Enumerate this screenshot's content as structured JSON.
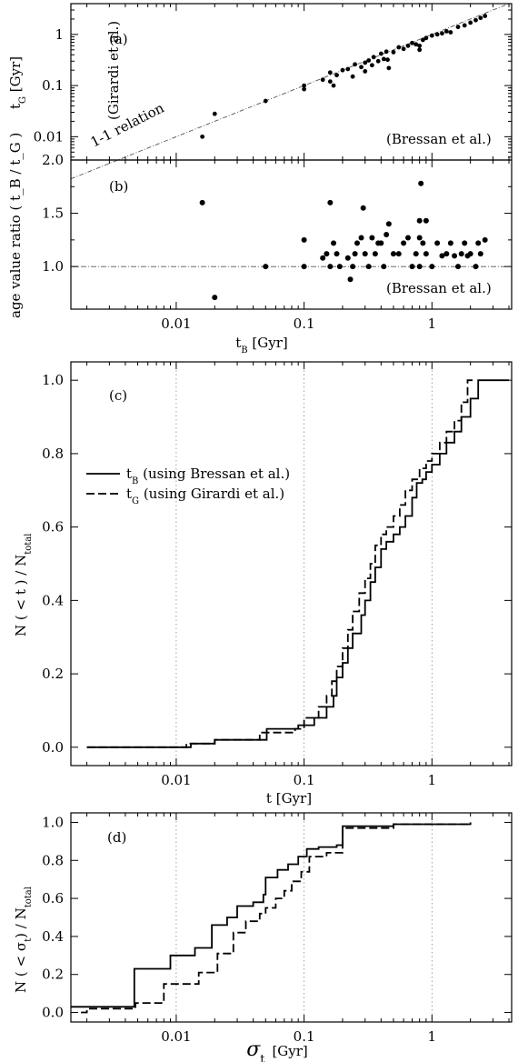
{
  "chart_data": [
    {
      "id": "a",
      "type": "scatter",
      "panel_label": "(a)",
      "xscale": "log",
      "yscale": "log",
      "xlim": [
        0.0015,
        4.2
      ],
      "ylim": [
        0.0035,
        4.0
      ],
      "ylabel": "t",
      "ylabel_sub": "G",
      "ylabel_unit": "[Gyr]",
      "yticks": [
        {
          "v": 0.01,
          "label": "0.01"
        },
        {
          "v": 0.1,
          "label": "0.1"
        },
        {
          "v": 1,
          "label": "1"
        }
      ],
      "annotations": {
        "reference_line": "1-1 relation",
        "model_y": "(Girardi et al.)",
        "model_x": "(Bressan et al.)"
      },
      "points": [
        [
          0.016,
          0.01
        ],
        [
          0.02,
          0.028
        ],
        [
          0.05,
          0.05
        ],
        [
          0.1,
          0.1
        ],
        [
          0.1,
          0.085
        ],
        [
          0.14,
          0.13
        ],
        [
          0.16,
          0.18
        ],
        [
          0.16,
          0.12
        ],
        [
          0.17,
          0.1
        ],
        [
          0.18,
          0.16
        ],
        [
          0.2,
          0.2
        ],
        [
          0.22,
          0.21
        ],
        [
          0.24,
          0.15
        ],
        [
          0.25,
          0.26
        ],
        [
          0.28,
          0.23
        ],
        [
          0.3,
          0.28
        ],
        [
          0.3,
          0.19
        ],
        [
          0.32,
          0.31
        ],
        [
          0.34,
          0.25
        ],
        [
          0.35,
          0.36
        ],
        [
          0.38,
          0.3
        ],
        [
          0.4,
          0.42
        ],
        [
          0.42,
          0.33
        ],
        [
          0.44,
          0.46
        ],
        [
          0.45,
          0.32
        ],
        [
          0.46,
          0.22
        ],
        [
          0.5,
          0.45
        ],
        [
          0.55,
          0.56
        ],
        [
          0.6,
          0.52
        ],
        [
          0.65,
          0.6
        ],
        [
          0.7,
          0.68
        ],
        [
          0.75,
          0.64
        ],
        [
          0.8,
          0.6
        ],
        [
          0.8,
          0.5
        ],
        [
          0.85,
          0.78
        ],
        [
          0.9,
          0.85
        ],
        [
          1.0,
          0.95
        ],
        [
          1.1,
          1.0
        ],
        [
          1.2,
          1.05
        ],
        [
          1.3,
          1.15
        ],
        [
          1.4,
          1.1
        ],
        [
          1.6,
          1.4
        ],
        [
          1.8,
          1.5
        ],
        [
          2.0,
          1.7
        ],
        [
          2.2,
          1.9
        ],
        [
          2.4,
          2.1
        ],
        [
          2.6,
          2.3
        ]
      ]
    },
    {
      "id": "b",
      "type": "scatter",
      "panel_label": "(b)",
      "xscale": "log",
      "xlim": [
        0.0015,
        4.2
      ],
      "ylim": [
        0.6,
        2.0
      ],
      "ylabel": "age value ratio ( t_B / t_G )",
      "xlabel": "t",
      "xlabel_sub": "B",
      "xlabel_unit": "[Gyr]",
      "xticks": [
        {
          "v": 0.01,
          "label": "0.01"
        },
        {
          "v": 0.1,
          "label": "0.1"
        },
        {
          "v": 1,
          "label": "1"
        }
      ],
      "yticks": [
        {
          "v": 1.0,
          "label": "1.0"
        },
        {
          "v": 1.5,
          "label": "1.5"
        },
        {
          "v": 2.0,
          "label": "2.0"
        }
      ],
      "reference_y": 1.0,
      "annotation": "(Bressan et al.)",
      "points": [
        [
          0.016,
          1.6
        ],
        [
          0.02,
          0.71
        ],
        [
          0.05,
          1.0
        ],
        [
          0.1,
          1.25
        ],
        [
          0.1,
          1.0
        ],
        [
          0.14,
          1.08
        ],
        [
          0.15,
          1.12
        ],
        [
          0.16,
          1.6
        ],
        [
          0.16,
          1.0
        ],
        [
          0.17,
          1.22
        ],
        [
          0.18,
          1.12
        ],
        [
          0.19,
          1.0
        ],
        [
          0.22,
          1.08
        ],
        [
          0.23,
          0.88
        ],
        [
          0.24,
          1.0
        ],
        [
          0.25,
          1.12
        ],
        [
          0.26,
          1.22
        ],
        [
          0.28,
          1.27
        ],
        [
          0.29,
          1.55
        ],
        [
          0.3,
          1.12
        ],
        [
          0.32,
          1.0
        ],
        [
          0.34,
          1.27
        ],
        [
          0.36,
          1.12
        ],
        [
          0.38,
          1.22
        ],
        [
          0.4,
          1.22
        ],
        [
          0.42,
          1.0
        ],
        [
          0.44,
          1.3
        ],
        [
          0.46,
          1.4
        ],
        [
          0.5,
          1.12
        ],
        [
          0.55,
          1.12
        ],
        [
          0.6,
          1.22
        ],
        [
          0.65,
          1.27
        ],
        [
          0.7,
          1.0
        ],
        [
          0.75,
          1.12
        ],
        [
          0.8,
          1.43
        ],
        [
          0.8,
          1.27
        ],
        [
          0.8,
          1.0
        ],
        [
          0.82,
          1.78
        ],
        [
          0.85,
          1.22
        ],
        [
          0.9,
          1.43
        ],
        [
          0.9,
          1.12
        ],
        [
          1.0,
          1.0
        ],
        [
          1.1,
          1.22
        ],
        [
          1.2,
          1.1
        ],
        [
          1.3,
          1.12
        ],
        [
          1.4,
          1.22
        ],
        [
          1.5,
          1.1
        ],
        [
          1.6,
          1.0
        ],
        [
          1.7,
          1.12
        ],
        [
          1.8,
          1.22
        ],
        [
          1.9,
          1.1
        ],
        [
          2.0,
          1.12
        ],
        [
          2.2,
          1.0
        ],
        [
          2.3,
          1.22
        ],
        [
          2.4,
          1.12
        ],
        [
          2.6,
          1.25
        ]
      ]
    },
    {
      "id": "c",
      "type": "line",
      "panel_label": "(c)",
      "xscale": "log",
      "xlim": [
        0.0015,
        4.2
      ],
      "ylim": [
        -0.05,
        1.05
      ],
      "ylabel": "N ( < t ) / N",
      "ylabel_sub": "total",
      "xlabel": "t [Gyr]",
      "xticks": [
        {
          "v": 0.01,
          "label": "0.01"
        },
        {
          "v": 0.1,
          "label": "0.1"
        },
        {
          "v": 1,
          "label": "1"
        }
      ],
      "yticks": [
        {
          "v": 0.0,
          "label": "0.0"
        },
        {
          "v": 0.2,
          "label": "0.2"
        },
        {
          "v": 0.4,
          "label": "0.4"
        },
        {
          "v": 0.6,
          "label": "0.6"
        },
        {
          "v": 0.8,
          "label": "0.8"
        },
        {
          "v": 1.0,
          "label": "1.0"
        }
      ],
      "legend": [
        {
          "sym": "t",
          "sub": "B",
          "text": "(using Bressan et al.)",
          "style": "solid"
        },
        {
          "sym": "t",
          "sub": "G",
          "text": "(using Girardi et al.)",
          "style": "dashed"
        }
      ],
      "series": [
        {
          "style": "solid",
          "points": [
            [
              0.002,
              0.0
            ],
            [
              0.012,
              0.0
            ],
            [
              0.013,
              0.01
            ],
            [
              0.02,
              0.02
            ],
            [
              0.05,
              0.02
            ],
            [
              0.051,
              0.05
            ],
            [
              0.09,
              0.06
            ],
            [
              0.12,
              0.08
            ],
            [
              0.15,
              0.11
            ],
            [
              0.17,
              0.14
            ],
            [
              0.18,
              0.19
            ],
            [
              0.2,
              0.23
            ],
            [
              0.22,
              0.27
            ],
            [
              0.24,
              0.31
            ],
            [
              0.28,
              0.36
            ],
            [
              0.3,
              0.4
            ],
            [
              0.33,
              0.45
            ],
            [
              0.36,
              0.49
            ],
            [
              0.4,
              0.54
            ],
            [
              0.44,
              0.56
            ],
            [
              0.5,
              0.58
            ],
            [
              0.56,
              0.6
            ],
            [
              0.62,
              0.63
            ],
            [
              0.7,
              0.68
            ],
            [
              0.76,
              0.72
            ],
            [
              0.84,
              0.73
            ],
            [
              0.9,
              0.75
            ],
            [
              1.0,
              0.77
            ],
            [
              1.15,
              0.8
            ],
            [
              1.3,
              0.83
            ],
            [
              1.5,
              0.86
            ],
            [
              1.7,
              0.9
            ],
            [
              2.0,
              0.95
            ],
            [
              2.3,
              1.0
            ],
            [
              4.0,
              1.0
            ]
          ]
        },
        {
          "style": "dashed",
          "points": [
            [
              0.002,
              0.0
            ],
            [
              0.011,
              0.0
            ],
            [
              0.012,
              0.01
            ],
            [
              0.02,
              0.02
            ],
            [
              0.04,
              0.02
            ],
            [
              0.045,
              0.04
            ],
            [
              0.085,
              0.05
            ],
            [
              0.1,
              0.08
            ],
            [
              0.13,
              0.11
            ],
            [
              0.15,
              0.14
            ],
            [
              0.165,
              0.18
            ],
            [
              0.18,
              0.22
            ],
            [
              0.2,
              0.27
            ],
            [
              0.22,
              0.32
            ],
            [
              0.24,
              0.37
            ],
            [
              0.27,
              0.42
            ],
            [
              0.3,
              0.46
            ],
            [
              0.33,
              0.5
            ],
            [
              0.36,
              0.55
            ],
            [
              0.4,
              0.58
            ],
            [
              0.44,
              0.6
            ],
            [
              0.5,
              0.63
            ],
            [
              0.56,
              0.66
            ],
            [
              0.62,
              0.7
            ],
            [
              0.7,
              0.73
            ],
            [
              0.8,
              0.76
            ],
            [
              0.9,
              0.78
            ],
            [
              1.0,
              0.8
            ],
            [
              1.15,
              0.83
            ],
            [
              1.3,
              0.86
            ],
            [
              1.5,
              0.89
            ],
            [
              1.7,
              0.94
            ],
            [
              1.9,
              1.0
            ],
            [
              2.1,
              1.0
            ]
          ]
        }
      ]
    },
    {
      "id": "d",
      "type": "line",
      "panel_label": "(d)",
      "xscale": "log",
      "xlim": [
        0.0015,
        4.2
      ],
      "ylim": [
        -0.05,
        1.05
      ],
      "ylabel": "N ( < σ",
      "ylabel_sub1": "t",
      "ylabel_mid": ") / N",
      "ylabel_sub2": "total",
      "xlabel": "σ",
      "xlabel_sub": "t",
      "xlabel_unit": "[Gyr]",
      "xticks": [
        {
          "v": 0.01,
          "label": "0.01"
        },
        {
          "v": 0.1,
          "label": "0.1"
        },
        {
          "v": 1,
          "label": "1"
        }
      ],
      "yticks": [
        {
          "v": 0.0,
          "label": "0.0"
        },
        {
          "v": 0.2,
          "label": "0.2"
        },
        {
          "v": 0.4,
          "label": "0.4"
        },
        {
          "v": 0.6,
          "label": "0.6"
        },
        {
          "v": 0.8,
          "label": "0.8"
        },
        {
          "v": 1.0,
          "label": "1.0"
        }
      ],
      "series": [
        {
          "style": "solid",
          "points": [
            [
              0.0015,
              0.03
            ],
            [
              0.0045,
              0.03
            ],
            [
              0.0047,
              0.23
            ],
            [
              0.0085,
              0.23
            ],
            [
              0.009,
              0.3
            ],
            [
              0.013,
              0.3
            ],
            [
              0.014,
              0.34
            ],
            [
              0.018,
              0.34
            ],
            [
              0.019,
              0.46
            ],
            [
              0.024,
              0.46
            ],
            [
              0.025,
              0.5
            ],
            [
              0.029,
              0.5
            ],
            [
              0.03,
              0.56
            ],
            [
              0.04,
              0.58
            ],
            [
              0.048,
              0.62
            ],
            [
              0.05,
              0.71
            ],
            [
              0.062,
              0.75
            ],
            [
              0.075,
              0.78
            ],
            [
              0.09,
              0.82
            ],
            [
              0.105,
              0.86
            ],
            [
              0.13,
              0.87
            ],
            [
              0.18,
              0.88
            ],
            [
              0.2,
              0.98
            ],
            [
              0.5,
              0.99
            ],
            [
              2.0,
              1.0
            ]
          ]
        },
        {
          "style": "dashed",
          "points": [
            [
              0.0018,
              0.0
            ],
            [
              0.002,
              0.02
            ],
            [
              0.0045,
              0.02
            ],
            [
              0.0048,
              0.05
            ],
            [
              0.0075,
              0.05
            ],
            [
              0.008,
              0.15
            ],
            [
              0.014,
              0.15
            ],
            [
              0.015,
              0.21
            ],
            [
              0.02,
              0.21
            ],
            [
              0.021,
              0.31
            ],
            [
              0.026,
              0.31
            ],
            [
              0.028,
              0.42
            ],
            [
              0.035,
              0.48
            ],
            [
              0.045,
              0.52
            ],
            [
              0.05,
              0.55
            ],
            [
              0.06,
              0.6
            ],
            [
              0.07,
              0.64
            ],
            [
              0.08,
              0.69
            ],
            [
              0.095,
              0.74
            ],
            [
              0.11,
              0.82
            ],
            [
              0.15,
              0.84
            ],
            [
              0.2,
              0.97
            ],
            [
              0.5,
              0.99
            ],
            [
              2.0,
              1.0
            ]
          ]
        }
      ]
    }
  ]
}
